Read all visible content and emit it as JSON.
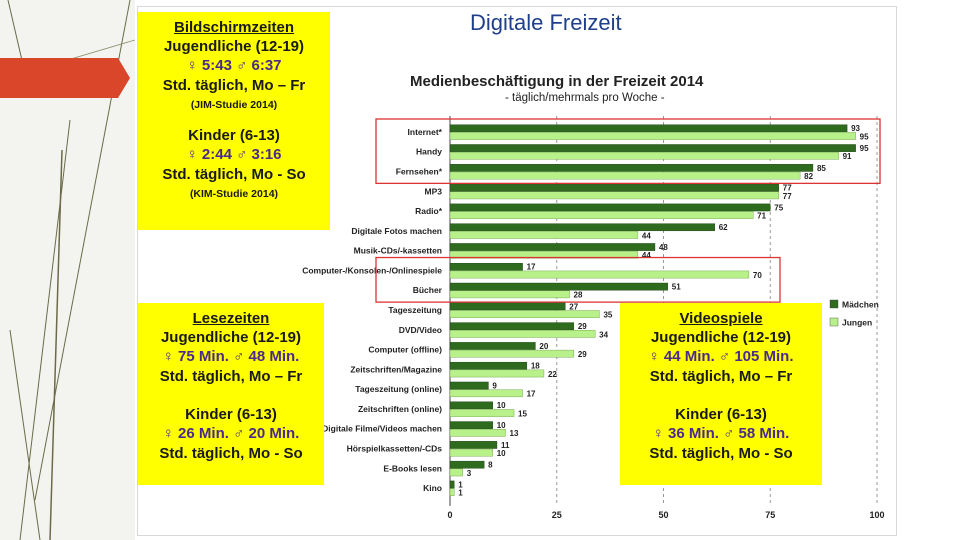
{
  "page": {
    "title": "Digitale Freizeit"
  },
  "boxes": {
    "screen": {
      "title": "Bildschirmzeiten",
      "teen_label": "Jugendliche (12-19)",
      "teen_times": "♀ 5:43   ♂ 6:37",
      "teen_freq": "Std. täglich, Mo – Fr",
      "teen_source": "(JIM-Studie 2014)",
      "kids_label": "Kinder (6-13)",
      "kids_times": "♀ 2:44   ♂ 3:16",
      "kids_freq": "Std. täglich, Mo - So",
      "kids_source": "(KIM-Studie 2014)"
    },
    "reading": {
      "title": "Lesezeiten",
      "teen_label": "Jugendliche (12-19)",
      "teen_times": "♀ 75 Min.   ♂ 48 Min.",
      "teen_freq": "Std. täglich, Mo – Fr",
      "kids_label": "Kinder (6-13)",
      "kids_times": "♀ 26 Min.   ♂ 20 Min.",
      "kids_freq": "Std. täglich, Mo - So"
    },
    "games": {
      "title": "Videospiele",
      "teen_label": "Jugendliche (12-19)",
      "teen_times": "♀ 44 Min.   ♂ 105 Min.",
      "teen_freq": "Std. täglich, Mo – Fr",
      "kids_label": "Kinder (6-13)",
      "kids_times": "♀ 36 Min.   ♂ 58 Min.",
      "kids_freq": "Std. täglich, Mo - So"
    }
  },
  "chart_data": {
    "type": "bar",
    "orientation": "horizontal",
    "title": "Medienbeschäftigung in der Freizeit 2014",
    "subtitle": "- täglich/mehrmals pro Woche -",
    "categories": [
      "Internet*",
      "Handy",
      "Fernsehen*",
      "MP3",
      "Radio*",
      "Digitale Fotos machen",
      "Musik-CDs/-kassetten",
      "Computer-/Konsolen-/Onlinespiele",
      "Bücher",
      "Tageszeitung",
      "DVD/Video",
      "Computer (offline)",
      "Zeitschriften/Magazine",
      "Tageszeitung (online)",
      "Zeitschriften (online)",
      "Digitale Filme/Videos machen",
      "Hörspielkassetten/-CDs",
      "E-Books lesen",
      "Kino"
    ],
    "series": [
      {
        "name": "Mädchen",
        "color": "#2e6b1e",
        "values": [
          93,
          95,
          85,
          77,
          75,
          62,
          48,
          17,
          51,
          27,
          29,
          20,
          18,
          9,
          10,
          10,
          11,
          8,
          1
        ]
      },
      {
        "name": "Jungen",
        "color": "#b8f08a",
        "values": [
          95,
          91,
          82,
          77,
          71,
          44,
          44,
          70,
          28,
          35,
          34,
          29,
          22,
          17,
          15,
          13,
          10,
          3,
          1
        ]
      }
    ],
    "xlim": [
      0,
      100
    ],
    "xticks": [
      0,
      25,
      50,
      75,
      100
    ],
    "legend": "right",
    "highlighted_groups": [
      [
        "Internet*",
        "Handy",
        "Fernsehen*"
      ],
      [
        "Computer-/Konsolen-/Onlinespiele",
        "Bücher"
      ]
    ]
  }
}
